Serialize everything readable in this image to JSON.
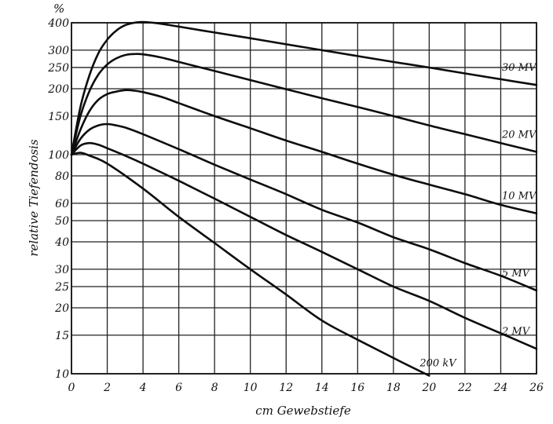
{
  "chart_data": {
    "type": "line",
    "title": "",
    "xlabel": "cm Gewebstiefe",
    "ylabel": "relative Tiefendosis",
    "yunit": "%",
    "xlim": [
      0,
      26
    ],
    "ylim": [
      10,
      400
    ],
    "yscale": "log",
    "grid": true,
    "xticks": [
      0,
      2,
      4,
      6,
      8,
      10,
      12,
      14,
      16,
      18,
      20,
      22,
      24,
      26
    ],
    "yticks": [
      10,
      15,
      20,
      25,
      30,
      40,
      50,
      60,
      80,
      100,
      150,
      200,
      250,
      300,
      400
    ],
    "series": [
      {
        "name": "30 MV",
        "x": [
          0,
          0.5,
          1,
          1.5,
          2,
          2.5,
          3,
          3.5,
          4,
          5,
          6,
          8,
          10,
          12,
          14,
          16,
          18,
          20,
          22,
          24,
          26
        ],
        "values": [
          100,
          165,
          230,
          290,
          335,
          368,
          390,
          400,
          403,
          396,
          384,
          361,
          340,
          319,
          300,
          282,
          265,
          250,
          235,
          221,
          208
        ]
      },
      {
        "name": "20 MV",
        "x": [
          0,
          0.5,
          1,
          1.5,
          2,
          2.5,
          3,
          3.5,
          4,
          5,
          6,
          8,
          10,
          12,
          14,
          16,
          18,
          20,
          22,
          24,
          26
        ],
        "values": [
          100,
          150,
          195,
          232,
          258,
          275,
          285,
          288,
          287,
          278,
          265,
          241,
          219,
          199,
          181,
          165,
          150,
          136,
          124,
          113,
          103
        ]
      },
      {
        "name": "10 MV",
        "x": [
          0,
          0.5,
          1,
          1.5,
          2,
          2.5,
          3,
          3.5,
          4,
          5,
          6,
          8,
          10,
          12,
          14,
          16,
          18,
          20,
          22,
          24,
          26
        ],
        "values": [
          100,
          130,
          158,
          178,
          189,
          194,
          197,
          196,
          193,
          184,
          172,
          150,
          132,
          116,
          103,
          91,
          81,
          73,
          66,
          59,
          54
        ]
      },
      {
        "name": "5 MV",
        "x": [
          0,
          0.5,
          1,
          1.5,
          2,
          2.5,
          3,
          4,
          6,
          8,
          10,
          12,
          14,
          16,
          18,
          20,
          22,
          24,
          26
        ],
        "values": [
          100,
          118,
          130,
          136,
          138,
          136,
          133,
          124,
          106,
          90,
          77,
          66,
          56,
          49,
          42,
          37,
          32,
          28,
          24
        ]
      },
      {
        "name": "2 MV",
        "x": [
          0,
          0.5,
          1,
          1.5,
          2,
          3,
          4,
          6,
          8,
          10,
          12,
          14,
          16,
          18,
          20,
          22,
          24,
          26
        ],
        "values": [
          100,
          110,
          113,
          111,
          107,
          99,
          91,
          76,
          63,
          52,
          43,
          36,
          30,
          25,
          21.5,
          18,
          15.3,
          13
        ]
      },
      {
        "name": "200 kV",
        "x": [
          0,
          0.5,
          1,
          2,
          4,
          6,
          8,
          10,
          12,
          14,
          16,
          18,
          20
        ],
        "values": [
          100,
          102,
          99,
          91,
          70,
          52,
          39.5,
          30,
          23,
          17.5,
          14.3,
          11.8,
          9.8
        ]
      }
    ]
  }
}
